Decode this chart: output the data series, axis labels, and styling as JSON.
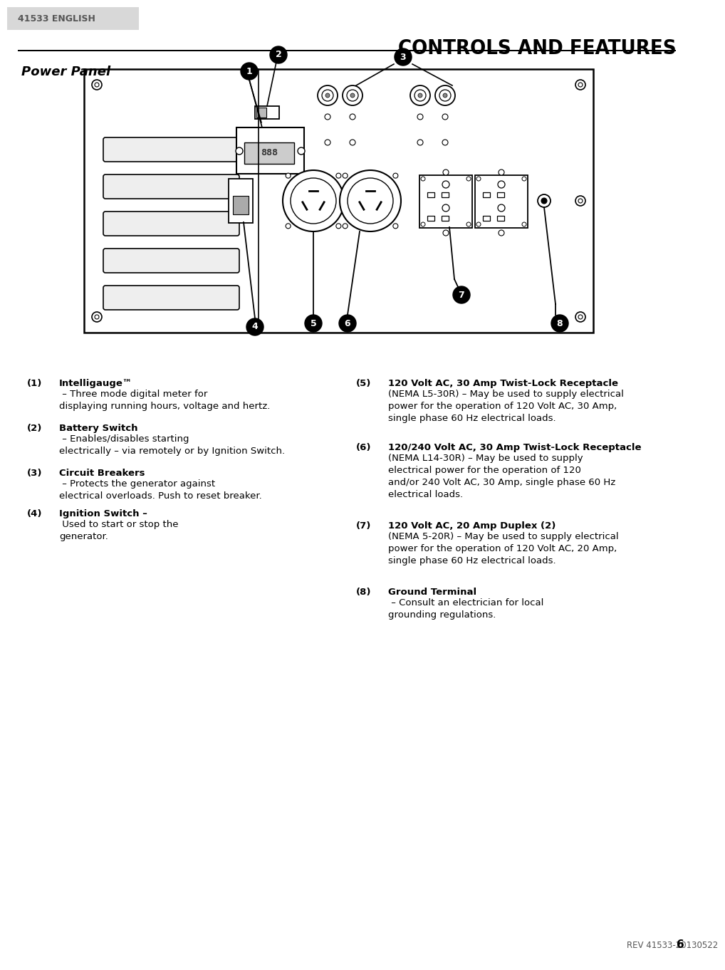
{
  "page_label": "41533 ENGLISH",
  "main_title": "CONTROLS AND FEATURES",
  "section_title": "Power Panel",
  "footer_text": "REV 41533-20130522",
  "page_number": "6",
  "bg_color": "#ffffff",
  "label_bg": "#d8d8d8",
  "items_left": [
    {
      "num": "(1)",
      "bold": "Intelligauge™",
      "rest": " – Three mode digital meter for\ndisplaying running hours, voltage and hertz."
    },
    {
      "num": "(2)",
      "bold": "Battery Switch",
      "rest": " – Enables/disables starting\nelectrically – via remotely or by Ignition Switch."
    },
    {
      "num": "(3)",
      "bold": "Circuit Breakers",
      "rest": " – Protects the generator against\nelectrical overloads. Push to reset breaker."
    },
    {
      "num": "(4)",
      "bold": "Ignition Switch –",
      "rest": " Used to start or stop the\ngenerator."
    }
  ],
  "items_right": [
    {
      "num": "(5)",
      "bold": "120 Volt AC, 30 Amp Twist-Lock Receptacle",
      "rest": "(NEMA L5-30R) – May be used to supply electrical\npower for the operation of 120 Volt AC, 30 Amp,\nsingle phase 60 Hz electrical loads."
    },
    {
      "num": "(6)",
      "bold": "120/240 Volt AC, 30 Amp Twist-Lock Receptacle",
      "rest": "(NEMA L14-30R) – May be used to supply\nelectrical power for the operation of 120\nand/or 240 Volt AC, 30 Amp, single phase 60 Hz\nelectrical loads."
    },
    {
      "num": "(7)",
      "bold": "120 Volt AC, 20 Amp Duplex (2)",
      "rest": "(NEMA 5-20R) – May be used to supply electrical\npower for the operation of 120 Volt AC, 20 Amp,\nsingle phase 60 Hz electrical loads."
    },
    {
      "num": "(8)",
      "bold": "Ground Terminal",
      "rest": " – Consult an electrician for local\ngrounding regulations."
    }
  ]
}
